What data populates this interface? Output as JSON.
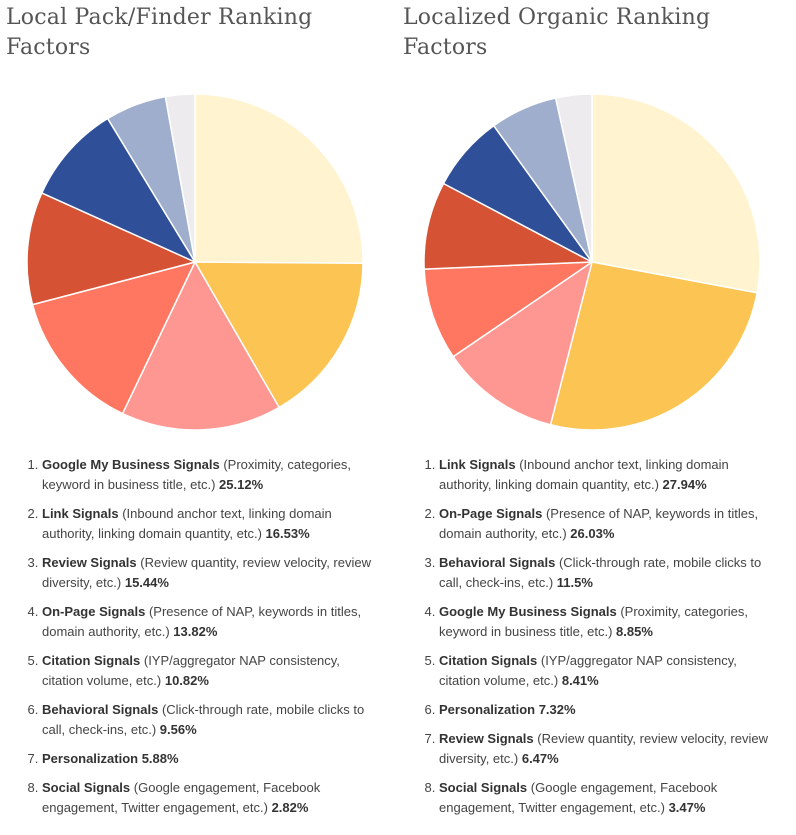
{
  "chart_data": [
    {
      "type": "pie",
      "title": "Local Pack/Finder Ranking Factors",
      "slices": [
        {
          "name": "Google My Business Signals",
          "desc": "(Proximity, categories, keyword in business title, etc.)",
          "value": 25.12,
          "color": "#FFF3D0"
        },
        {
          "name": "Link Signals",
          "desc": "(Inbound anchor text, linking domain authority, linking domain quantity, etc.)",
          "value": 16.53,
          "color": "#FCC553"
        },
        {
          "name": "Review Signals",
          "desc": "(Review quantity, review velocity, review diversity, etc.)",
          "value": 15.44,
          "color": "#FE9791"
        },
        {
          "name": "On-Page Signals",
          "desc": "(Presence of NAP, keywords in titles, domain authority, etc.)",
          "value": 13.82,
          "color": "#FF7761"
        },
        {
          "name": "Citation Signals",
          "desc": "(IYP/aggregator NAP consistency, citation volume, etc.)",
          "value": 10.82,
          "color": "#D55234"
        },
        {
          "name": "Behavioral Signals",
          "desc": "(Click-through rate, mobile clicks to call, check-ins, etc.)",
          "value": 9.56,
          "color": "#2F4F99"
        },
        {
          "name": "Personalization",
          "desc": "",
          "value": 5.88,
          "color": "#A0AECD"
        },
        {
          "name": "Social Signals",
          "desc": "(Google engagement, Facebook engagement, Twitter engagement, etc.)",
          "value": 2.82,
          "color": "#EDEBEE"
        }
      ]
    },
    {
      "type": "pie",
      "title": "Localized Organic Ranking Factors",
      "slices": [
        {
          "name": "Link Signals",
          "desc": "(Inbound anchor text, linking domain authority, linking domain quantity, etc.)",
          "value": 27.94,
          "color": "#FFF3D0"
        },
        {
          "name": "On-Page Signals",
          "desc": "(Presence of NAP, keywords in titles, domain authority, etc.)",
          "value": 26.03,
          "color": "#FCC553"
        },
        {
          "name": "Behavioral Signals",
          "desc": "(Click-through rate, mobile clicks to call, check-ins, etc.)",
          "value": 11.5,
          "color": "#FE9791"
        },
        {
          "name": "Google My Business Signals",
          "desc": "(Proximity, categories, keyword in business title, etc.)",
          "value": 8.85,
          "color": "#FF7761"
        },
        {
          "name": "Citation Signals",
          "desc": "(IYP/aggregator NAP consistency, citation volume, etc.)",
          "value": 8.41,
          "color": "#D55234"
        },
        {
          "name": "Personalization",
          "desc": "",
          "value": 7.32,
          "color": "#2F4F99"
        },
        {
          "name": "Review Signals",
          "desc": "(Review quantity, review velocity, review diversity, etc.)",
          "value": 6.47,
          "color": "#A0AECD"
        },
        {
          "name": "Social Signals",
          "desc": "(Google engagement, Facebook engagement, Twitter engagement, etc.)",
          "value": 3.47,
          "color": "#EDEBEE"
        }
      ]
    }
  ]
}
